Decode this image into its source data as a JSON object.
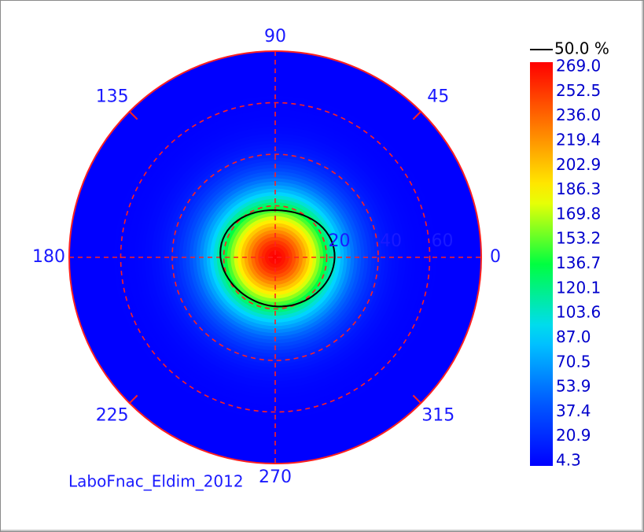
{
  "chart_data": {
    "type": "heatmap",
    "subtype": "polar-conoscope",
    "caption": "LaboFnac_Eldim_2012",
    "angle_labels": [
      {
        "angle": 0,
        "label": "0"
      },
      {
        "angle": 45,
        "label": "45"
      },
      {
        "angle": 90,
        "label": "90"
      },
      {
        "angle": 135,
        "label": "135"
      },
      {
        "angle": 180,
        "label": "180"
      },
      {
        "angle": 225,
        "label": "225"
      },
      {
        "angle": 270,
        "label": "270"
      },
      {
        "angle": 315,
        "label": "315"
      }
    ],
    "radial_rings": [
      20,
      40,
      60
    ],
    "radial_labels": [
      "20",
      "40",
      "60"
    ],
    "radial_max": 80,
    "value_range": [
      4.3,
      269.0
    ],
    "peak": {
      "theta": 0,
      "inclination": 0,
      "value": 269.0
    },
    "contour": {
      "label": "50.0 %",
      "level_fraction": 0.5,
      "color": "#000000"
    },
    "colorbar_ticks": [
      "269.0",
      "252.5",
      "236.0",
      "219.4",
      "202.9",
      "186.3",
      "169.8",
      "153.2",
      "136.7",
      "120.1",
      "103.6",
      "87.0",
      "70.5",
      "53.9",
      "37.4",
      "20.9",
      "4.3"
    ],
    "colors": {
      "grid": "#ff2020",
      "labels": "#1a1aff",
      "colormap": [
        "#0000ff",
        "#0060ff",
        "#00d8ff",
        "#00ff40",
        "#ffff00",
        "#ff8000",
        "#ff0000"
      ]
    }
  }
}
